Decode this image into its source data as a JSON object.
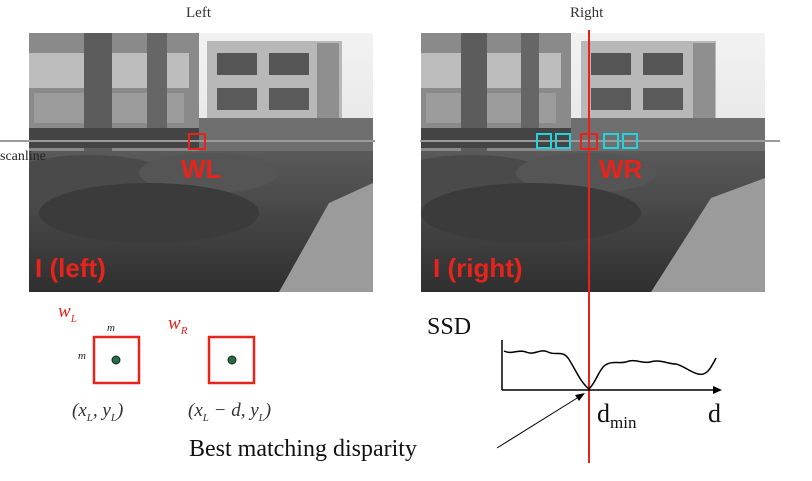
{
  "left_panel": {
    "title": "Left",
    "image_label": "I (left)",
    "window_label": "WL",
    "scanline_label": "scanline"
  },
  "right_panel": {
    "title": "Right",
    "image_label": "I (right)",
    "window_label": "WR"
  },
  "windows": {
    "wl_letter": "w",
    "wl_sub": "L",
    "wr_letter": "w",
    "wr_sub": "R",
    "size_label": "m",
    "left_coord": "(x",
    "left_coord_sub": "L",
    "left_coord_mid": ", y",
    "left_coord_sub2": "L",
    "left_coord_end": ")",
    "right_coord": "(x",
    "right_coord_sub": "L",
    "right_coord_mid": " − d, y",
    "right_coord_sub2": "L",
    "right_coord_end": ")"
  },
  "graph": {
    "y_label": "SSD",
    "x_label": "d",
    "min_label": "d",
    "min_sub": "min",
    "annotation": "Best matching disparity"
  },
  "colors": {
    "highlight": "#e8231b",
    "candidate": "#22d3e0",
    "scanline": "#9a9a9a",
    "dot": "#1f6e4a"
  }
}
